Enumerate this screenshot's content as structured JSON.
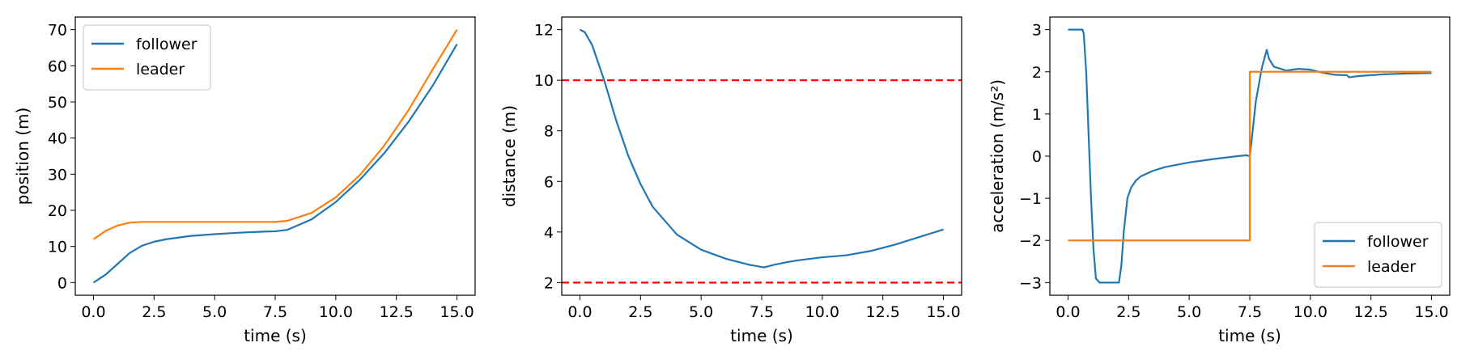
{
  "chart_data": [
    {
      "type": "line",
      "xlabel": "time (s)",
      "ylabel": "position (m)",
      "xlim": [
        -0.75,
        15.75
      ],
      "ylim": [
        -3.5,
        73.5
      ],
      "xticks": [
        0,
        2.5,
        5,
        7.5,
        10,
        12.5,
        15
      ],
      "xtick_labels": [
        "0.0",
        "2.5",
        "5.0",
        "7.5",
        "10.0",
        "12.5",
        "15.0"
      ],
      "yticks": [
        0,
        10,
        20,
        30,
        40,
        50,
        60,
        70
      ],
      "ytick_labels": [
        "0",
        "10",
        "20",
        "30",
        "40",
        "50",
        "60",
        "70"
      ],
      "legend": "upper left",
      "series": [
        {
          "name": "follower",
          "color": "#1f77b4",
          "x": [
            0,
            0.5,
            1,
            1.5,
            2,
            2.5,
            3,
            4,
            5,
            6,
            7,
            7.5,
            8,
            9,
            10,
            11,
            12,
            13,
            14,
            15
          ],
          "y": [
            0,
            2.2,
            5.2,
            8.2,
            10.2,
            11.3,
            12,
            12.9,
            13.4,
            13.8,
            14.1,
            14.2,
            14.6,
            17.5,
            22.3,
            28.5,
            35.8,
            44.5,
            54.5,
            66
          ]
        },
        {
          "name": "leader",
          "color": "#ff7f0e",
          "x": [
            0,
            0.5,
            1,
            1.5,
            2,
            3,
            4,
            5,
            6,
            7,
            7.5,
            8,
            9,
            10,
            11,
            12,
            13,
            14,
            15
          ],
          "y": [
            12,
            14.3,
            15.8,
            16.6,
            16.8,
            16.8,
            16.8,
            16.8,
            16.8,
            16.8,
            16.8,
            17.1,
            19.3,
            23.6,
            29.8,
            37.9,
            47.7,
            59.0,
            70
          ]
        }
      ]
    },
    {
      "type": "line",
      "xlabel": "time (s)",
      "ylabel": "distance (m)",
      "xlim": [
        -0.75,
        15.75
      ],
      "ylim": [
        1.5,
        12.5
      ],
      "xticks": [
        0,
        2.5,
        5,
        7.5,
        10,
        12.5,
        15
      ],
      "xtick_labels": [
        "0.0",
        "2.5",
        "5.0",
        "7.5",
        "10.0",
        "12.5",
        "15.0"
      ],
      "yticks": [
        2,
        4,
        6,
        8,
        10,
        12
      ],
      "ytick_labels": [
        "2",
        "4",
        "6",
        "8",
        "10",
        "12"
      ],
      "hlines": [
        {
          "y": 10,
          "color": "#ff0000",
          "style": "dashed"
        },
        {
          "y": 2,
          "color": "#ff0000",
          "style": "dashed"
        }
      ],
      "series": [
        {
          "color": "#1f77b4",
          "x": [
            0,
            0.2,
            0.5,
            1,
            1.5,
            2,
            2.5,
            3,
            4,
            5,
            6,
            7,
            7.6,
            8,
            8.5,
            9,
            10,
            11,
            12,
            13,
            14,
            15
          ],
          "y": [
            12,
            11.9,
            11.4,
            10,
            8.4,
            7.0,
            5.9,
            5.0,
            3.9,
            3.3,
            2.95,
            2.7,
            2.6,
            2.7,
            2.8,
            2.88,
            3.0,
            3.08,
            3.25,
            3.5,
            3.8,
            4.1
          ]
        }
      ]
    },
    {
      "type": "line",
      "xlabel": "time (s)",
      "ylabel": "acceleration (m/s²)",
      "xlim": [
        -0.75,
        15.75
      ],
      "ylim": [
        -3.3,
        3.3
      ],
      "xticks": [
        0,
        2.5,
        5,
        7.5,
        10,
        12.5,
        15
      ],
      "xtick_labels": [
        "0.0",
        "2.5",
        "5.0",
        "7.5",
        "10.0",
        "12.5",
        "15.0"
      ],
      "yticks": [
        -3,
        -2,
        -1,
        0,
        1,
        2,
        3
      ],
      "ytick_labels": [
        "−3",
        "−2",
        "−1",
        "0",
        "1",
        "2",
        "3"
      ],
      "legend": "lower right",
      "series": [
        {
          "name": "follower",
          "color": "#1f77b4",
          "x": [
            0,
            0.6,
            0.65,
            0.75,
            0.85,
            0.95,
            1.05,
            1.15,
            1.3,
            2.1,
            2.2,
            2.3,
            2.45,
            2.6,
            2.8,
            3.0,
            3.5,
            4,
            5,
            6,
            7,
            7.35,
            7.5,
            7.6,
            7.75,
            8.0,
            8.2,
            8.3,
            8.5,
            9.0,
            9.5,
            10.0,
            10.5,
            11.0,
            11.5,
            11.6,
            12,
            13,
            14,
            15
          ],
          "y": [
            3,
            3,
            2.9,
            2.0,
            0.5,
            -1.0,
            -2.2,
            -2.9,
            -3,
            -3,
            -2.6,
            -1.8,
            -1.0,
            -0.75,
            -0.58,
            -0.48,
            -0.35,
            -0.26,
            -0.15,
            -0.07,
            0,
            0.02,
            0,
            0.5,
            1.3,
            2.1,
            2.52,
            2.3,
            2.12,
            2.03,
            2.07,
            2.05,
            1.98,
            1.93,
            1.92,
            1.87,
            1.9,
            1.94,
            1.96,
            1.97
          ]
        },
        {
          "name": "leader",
          "color": "#ff7f0e",
          "x": [
            0,
            7.5,
            7.5,
            15
          ],
          "y": [
            -2,
            -2,
            2,
            2
          ]
        }
      ]
    }
  ]
}
